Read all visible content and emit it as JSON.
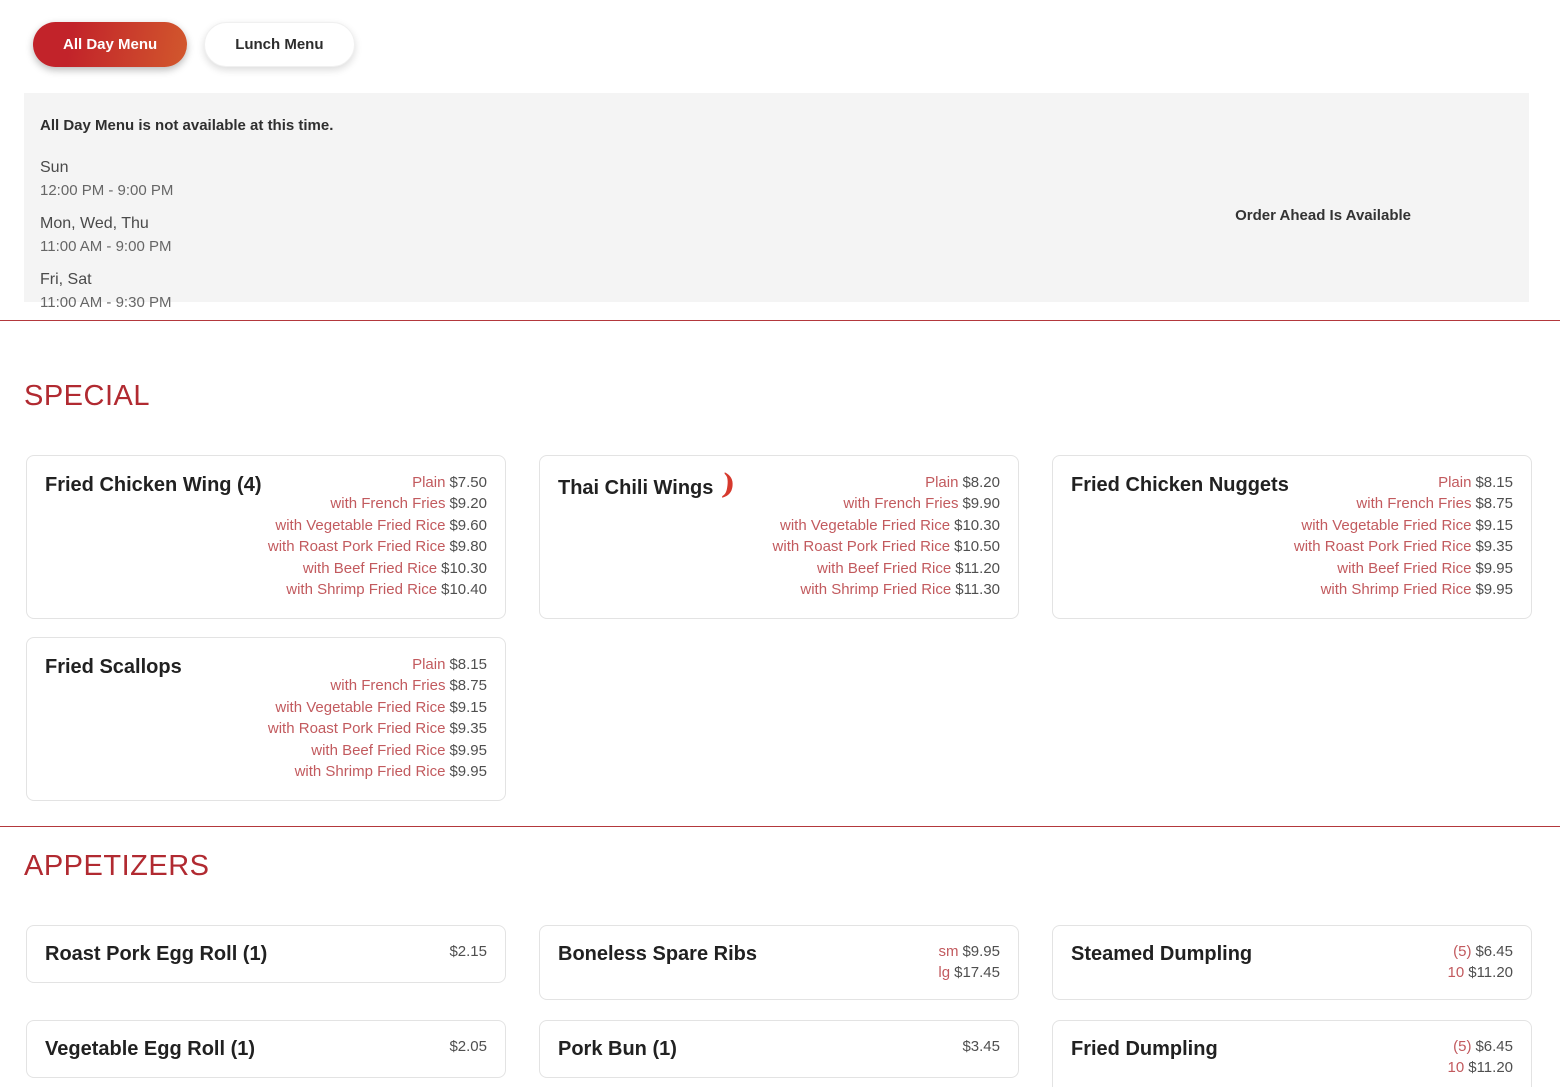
{
  "page": {
    "title": "Menus"
  },
  "tabs": [
    {
      "label": "All Day Menu",
      "active": true
    },
    {
      "label": "Lunch Menu",
      "active": false
    }
  ],
  "availability": {
    "notice": "All Day Menu is not available at this time.",
    "hours": [
      {
        "days": "Sun",
        "time": "12:00 PM - 9:00 PM"
      },
      {
        "days": "Mon, Wed, Thu",
        "time": "11:00 AM - 9:00 PM"
      },
      {
        "days": "Fri, Sat",
        "time": "11:00 AM - 9:30 PM"
      }
    ],
    "order_ahead": "Order Ahead Is Available"
  },
  "icons": {
    "spicy_glyph": ")"
  },
  "colors": {
    "accent_red": "#b12a31",
    "divider_red": "#b3383c",
    "option_label_rose": "#c25a5e",
    "price_gray": "#4f4f4f",
    "tab_gradient_start": "#c2232a",
    "tab_gradient_end": "#d2582d",
    "notice_bg": "#f4f4f4",
    "chili_red": "#d6392d"
  },
  "sections": [
    {
      "title": "SPECIAL",
      "items": [
        {
          "name": "Fried Chicken Wing (4)",
          "options": [
            {
              "label": "Plain",
              "price": "$7.50"
            },
            {
              "label": "with French Fries",
              "price": "$9.20"
            },
            {
              "label": "with Vegetable Fried Rice",
              "price": "$9.60"
            },
            {
              "label": "with Roast Pork Fried Rice",
              "price": "$9.80"
            },
            {
              "label": "with Beef Fried Rice",
              "price": "$10.30"
            },
            {
              "label": "with Shrimp Fried Rice",
              "price": "$10.40"
            }
          ]
        },
        {
          "name": "Thai Chili Wings",
          "spicy": true,
          "options": [
            {
              "label": "Plain",
              "price": "$8.20"
            },
            {
              "label": "with French Fries",
              "price": "$9.90"
            },
            {
              "label": "with Vegetable Fried Rice",
              "price": "$10.30"
            },
            {
              "label": "with Roast Pork Fried Rice",
              "price": "$10.50"
            },
            {
              "label": "with Beef Fried Rice",
              "price": "$11.20"
            },
            {
              "label": "with Shrimp Fried Rice",
              "price": "$11.30"
            }
          ]
        },
        {
          "name": "Fried Chicken Nuggets",
          "options": [
            {
              "label": "Plain",
              "price": "$8.15"
            },
            {
              "label": "with French Fries",
              "price": "$8.75"
            },
            {
              "label": "with Vegetable Fried Rice",
              "price": "$9.15"
            },
            {
              "label": "with Roast Pork Fried Rice",
              "price": "$9.35"
            },
            {
              "label": "with Beef Fried Rice",
              "price": "$9.95"
            },
            {
              "label": "with Shrimp Fried Rice",
              "price": "$9.95"
            }
          ]
        },
        {
          "name": "Fried Scallops",
          "options": [
            {
              "label": "Plain",
              "price": "$8.15"
            },
            {
              "label": "with French Fries",
              "price": "$8.75"
            },
            {
              "label": "with Vegetable Fried Rice",
              "price": "$9.15"
            },
            {
              "label": "with Roast Pork Fried Rice",
              "price": "$9.35"
            },
            {
              "label": "with Beef Fried Rice",
              "price": "$9.95"
            },
            {
              "label": "with Shrimp Fried Rice",
              "price": "$9.95"
            }
          ]
        }
      ]
    },
    {
      "title": "APPETIZERS",
      "items": [
        {
          "name": "Roast Pork Egg Roll (1)",
          "options": [
            {
              "label": "",
              "price": "$2.15"
            }
          ]
        },
        {
          "name": "Boneless Spare Ribs",
          "options": [
            {
              "label": "sm",
              "price": "$9.95"
            },
            {
              "label": "lg",
              "price": "$17.45"
            }
          ]
        },
        {
          "name": "Steamed Dumpling",
          "options": [
            {
              "label": "(5)",
              "price": "$6.45"
            },
            {
              "label": "10",
              "price": "$11.20"
            }
          ]
        },
        {
          "name": "Vegetable Egg Roll (1)",
          "options": [
            {
              "label": "",
              "price": "$2.05"
            }
          ]
        },
        {
          "name": "Pork Bun (1)",
          "options": [
            {
              "label": "",
              "price": "$3.45"
            }
          ]
        },
        {
          "name": "Fried Dumpling",
          "options": [
            {
              "label": "(5)",
              "price": "$6.45"
            },
            {
              "label": "10",
              "price": "$11.20"
            }
          ]
        }
      ]
    }
  ]
}
